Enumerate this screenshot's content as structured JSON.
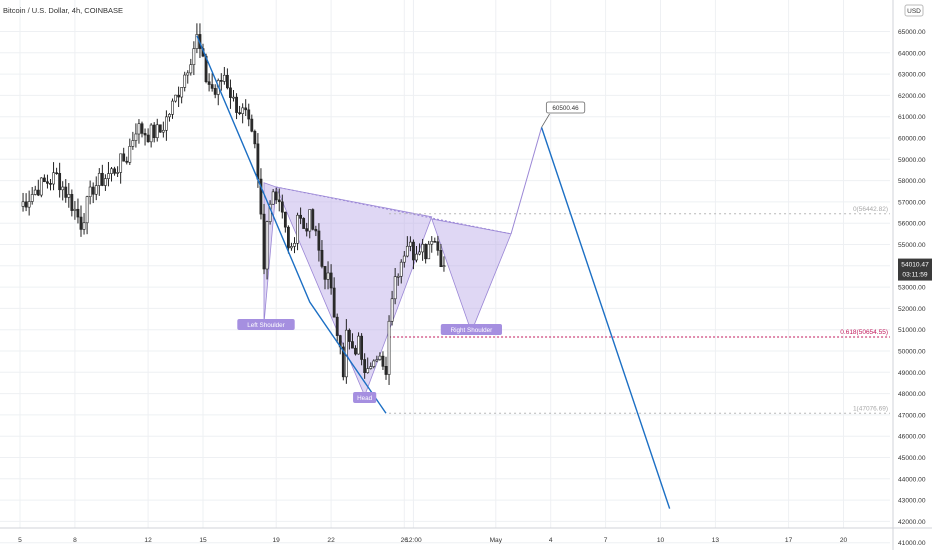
{
  "header": {
    "symbol_title": "Bitcoin / U.S. Dollar, 4h, COINBASE"
  },
  "colors": {
    "up": "#2b2b2b",
    "down": "#2b2b2b",
    "grid": "#eef0f3",
    "axis_text": "#333333",
    "trend_line": "#1c6fc4",
    "pattern_fill": "#b9a7e6",
    "pattern_stroke": "#9b87d6",
    "fib_line": "#c2185b",
    "fib_level_line": "#b8b8b8"
  },
  "axis": {
    "currency": "USD",
    "price_box": "54010.47",
    "timer_box": "03:11:59"
  },
  "fib": {
    "level_0_label": "0(56442.82)",
    "level_0618_label": "0.618(50654.55)",
    "level_1_label": "1(47076.69)"
  },
  "annotations": {
    "left_shoulder": "Left Shoulder",
    "head": "Head",
    "right_shoulder": "Right Shoulder",
    "target": "60500.46"
  },
  "chart_data": {
    "type": "candlestick",
    "title": "Bitcoin / U.S. Dollar, 4h, COINBASE",
    "y_unit": "USD",
    "ylim": [
      41000,
      66000
    ],
    "y_ticks": [
      41000,
      42000,
      43000,
      44000,
      45000,
      46000,
      47000,
      48000,
      49000,
      50000,
      51000,
      52000,
      53000,
      54000,
      55000,
      56000,
      57000,
      58000,
      59000,
      60000,
      61000,
      62000,
      63000,
      64000,
      65000
    ],
    "x_ticks": [
      {
        "label": "5",
        "i": 0
      },
      {
        "label": "8",
        "i": 18
      },
      {
        "label": "12",
        "i": 42
      },
      {
        "label": "15",
        "i": 60
      },
      {
        "label": "19",
        "i": 84
      },
      {
        "label": "22",
        "i": 102
      },
      {
        "label": "26",
        "i": 126
      },
      {
        "label": "12:00",
        "i": 129
      },
      {
        "label": "May",
        "i": 156
      },
      {
        "label": "4",
        "i": 174
      },
      {
        "label": "7",
        "i": 192
      },
      {
        "label": "10",
        "i": 210
      },
      {
        "label": "13",
        "i": 228
      },
      {
        "label": "17",
        "i": 252
      },
      {
        "label": "20",
        "i": 270
      }
    ],
    "last_price": 54010.47,
    "anchors": [
      [
        0,
        56800
      ],
      [
        6,
        57700
      ],
      [
        12,
        58200
      ],
      [
        16,
        57200
      ],
      [
        20,
        56000
      ],
      [
        24,
        57700
      ],
      [
        30,
        58400
      ],
      [
        35,
        59100
      ],
      [
        38,
        60500
      ],
      [
        42,
        60200
      ],
      [
        46,
        60300
      ],
      [
        50,
        61500
      ],
      [
        54,
        63000
      ],
      [
        58,
        64700
      ],
      [
        61,
        62800
      ],
      [
        64,
        62100
      ],
      [
        67,
        63000
      ],
      [
        70,
        61700
      ],
      [
        74,
        61000
      ],
      [
        77,
        59400
      ],
      [
        79,
        56300
      ],
      [
        80,
        53800
      ],
      [
        81,
        56500
      ],
      [
        83,
        57600
      ],
      [
        85,
        57100
      ],
      [
        87,
        55600
      ],
      [
        89,
        54500
      ],
      [
        91,
        56500
      ],
      [
        93,
        55800
      ],
      [
        95,
        56200
      ],
      [
        97,
        55300
      ],
      [
        99,
        54000
      ],
      [
        101,
        53400
      ],
      [
        103,
        51800
      ],
      [
        105,
        50500
      ],
      [
        106,
        48600
      ],
      [
        107,
        50800
      ],
      [
        109,
        49800
      ],
      [
        111,
        50400
      ],
      [
        113,
        49400
      ],
      [
        115,
        49700
      ],
      [
        117,
        49300
      ],
      [
        119,
        49600
      ],
      [
        120,
        48900
      ],
      [
        121,
        51800
      ],
      [
        123,
        53500
      ],
      [
        125,
        54300
      ],
      [
        127,
        55100
      ],
      [
        129,
        54600
      ],
      [
        131,
        55100
      ],
      [
        133,
        54700
      ],
      [
        135,
        55500
      ],
      [
        137,
        54800
      ],
      [
        139,
        54000
      ]
    ],
    "series": [
      {
        "name": "trend-decline-1",
        "points": [
          [
            58,
            64800
          ],
          [
            95,
            52300
          ],
          [
            120,
            47076
          ]
        ]
      },
      {
        "name": "projection",
        "points": [
          [
            171,
            60500.46
          ],
          [
            213,
            42600
          ]
        ]
      }
    ],
    "pattern": {
      "left_triangle": [
        [
          80,
          57900
        ],
        [
          84,
          57700
        ],
        [
          80,
          51300
        ]
      ],
      "neckline": [
        [
          84,
          57700
        ],
        [
          161,
          55500
        ]
      ],
      "head": [
        [
          84,
          57700
        ],
        [
          135,
          56300
        ],
        [
          113,
          47900
        ]
      ],
      "right_triangle": [
        [
          135,
          56200
        ],
        [
          161,
          55500
        ],
        [
          148,
          50900
        ]
      ],
      "projection_up": [
        [
          161,
          55500
        ],
        [
          171,
          60500.46
        ]
      ]
    },
    "levels": [
      {
        "name": "fib-0",
        "value": 56442.82,
        "from_i": 121
      },
      {
        "name": "fib-0.618",
        "value": 50654.55,
        "from_i": 121
      },
      {
        "name": "fib-1",
        "value": 47076.69,
        "from_i": 121
      }
    ]
  }
}
